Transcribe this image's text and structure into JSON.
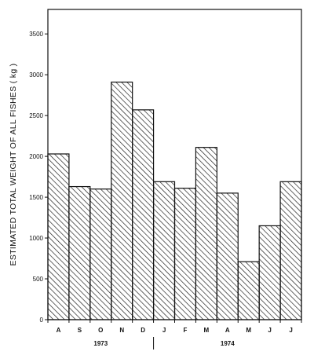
{
  "chart_data": {
    "type": "bar",
    "title": "",
    "xlabel": "",
    "ylabel": "ESTIMATED TOTAL WEIGHT OF ALL FISHES ( kg )",
    "categories": [
      "A",
      "S",
      "O",
      "N",
      "D",
      "J",
      "F",
      "M",
      "A",
      "M",
      "J",
      "J"
    ],
    "values": [
      2030,
      1630,
      1600,
      2910,
      2570,
      1690,
      1610,
      2110,
      1550,
      710,
      1150,
      1690
    ],
    "ylim": [
      0,
      3800
    ],
    "yticks": [
      0,
      500,
      1000,
      1500,
      2000,
      2500,
      3000,
      3500
    ],
    "year_groups": [
      {
        "label": "1973",
        "start": 0,
        "end": 4
      },
      {
        "label": "1974",
        "start": 5,
        "end": 11
      }
    ],
    "grid": false,
    "fill": "hatched",
    "colors": {
      "bar_stroke": "#111111",
      "hatch": "#222222",
      "background": "#ffffff"
    }
  }
}
